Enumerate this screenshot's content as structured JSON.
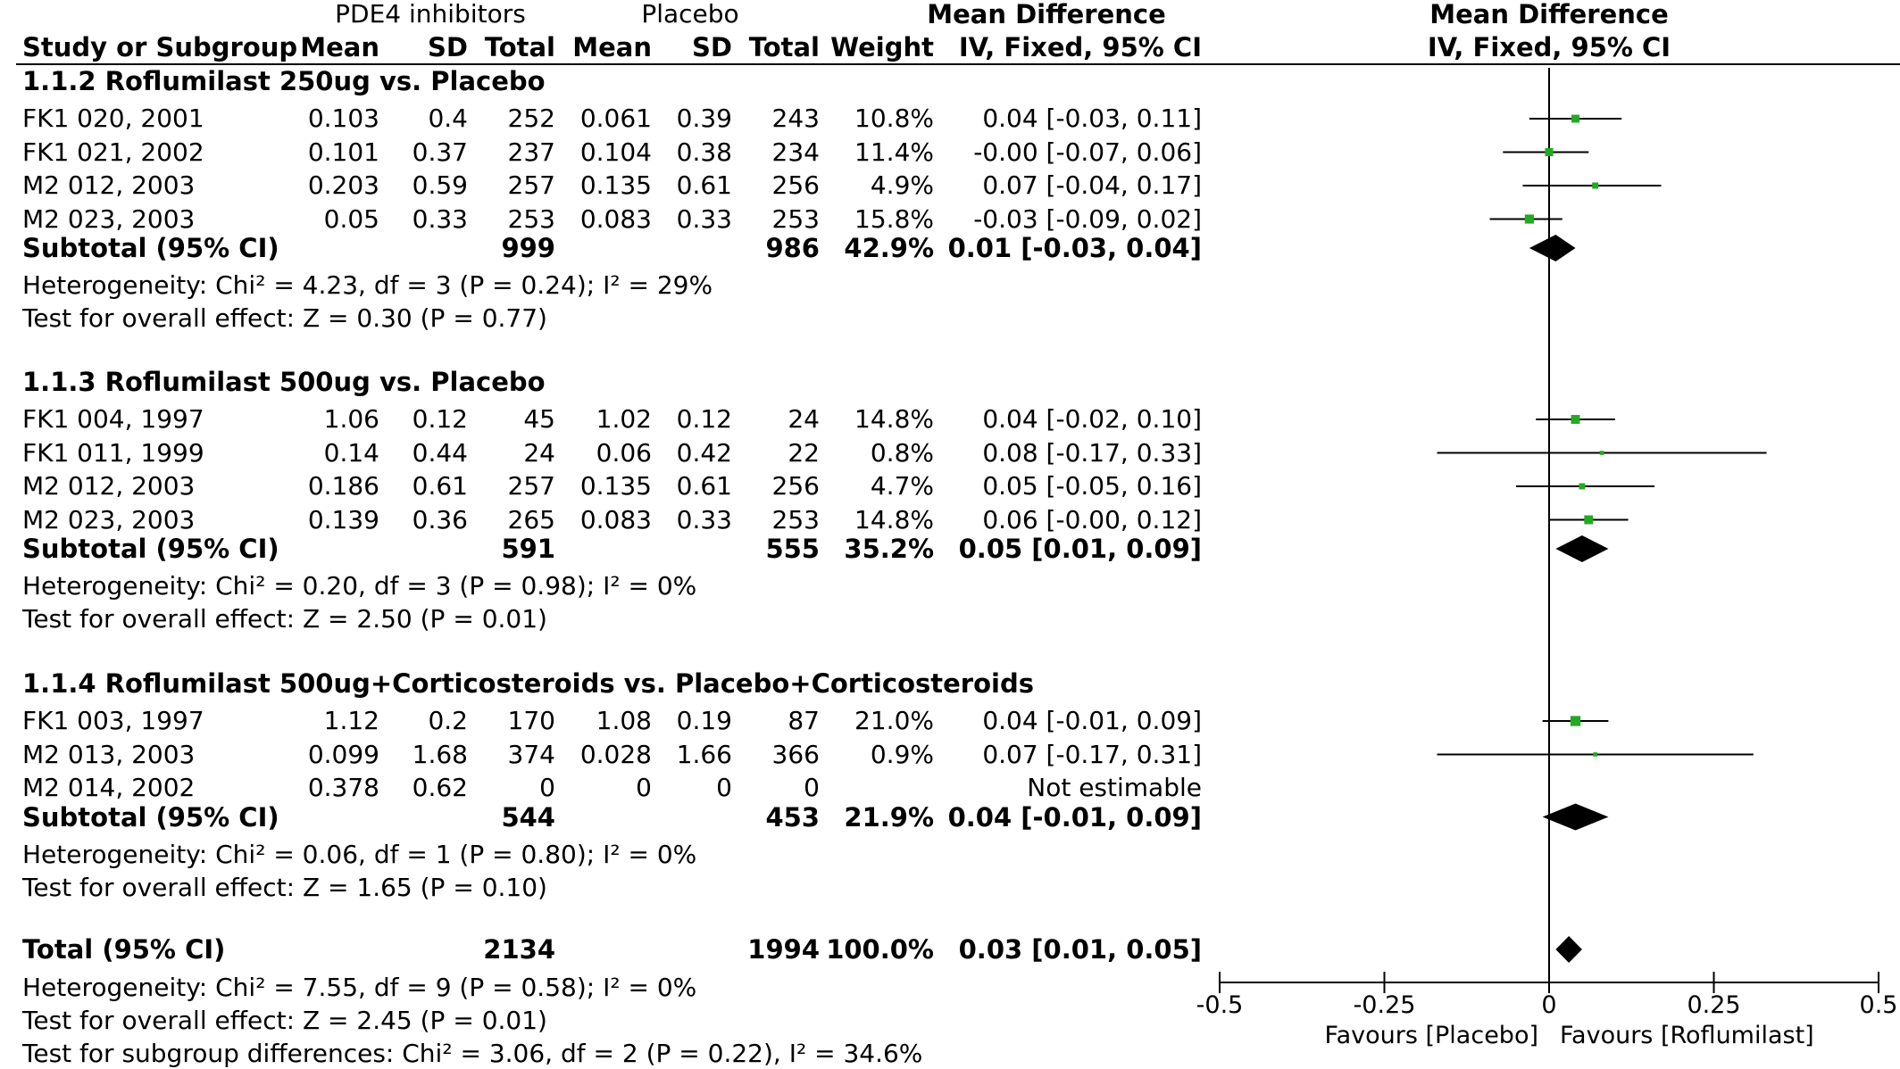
{
  "header": {
    "group1": "PDE4 inhibitors",
    "group2": "Placebo",
    "md_title": "Mean Difference",
    "md_method": "IV, Fixed, 95% CI",
    "plot_title": "Mean Difference",
    "plot_method": "IV, Fixed, 95% CI",
    "columns": [
      "Study or Subgroup",
      "Mean",
      "SD",
      "Total",
      "Mean",
      "SD",
      "Total",
      "Weight"
    ]
  },
  "subgroups": [
    {
      "title": "1.1.2 Roflumilast 250ug vs. Placebo",
      "studies": [
        {
          "name": "FK1 020, 2001",
          "e_mean": "0.103",
          "e_sd": "0.4",
          "e_total": "252",
          "c_mean": "0.061",
          "c_sd": "0.39",
          "c_total": "243",
          "weight": "10.8%",
          "ci_text": "0.04 [-0.03, 0.11]",
          "md": 0.04,
          "lo": -0.03,
          "hi": 0.11,
          "w": 10.8
        },
        {
          "name": "FK1 021, 2002",
          "e_mean": "0.101",
          "e_sd": "0.37",
          "e_total": "237",
          "c_mean": "0.104",
          "c_sd": "0.38",
          "c_total": "234",
          "weight": "11.4%",
          "ci_text": "-0.00 [-0.07, 0.06]",
          "md": -0.0,
          "lo": -0.07,
          "hi": 0.06,
          "w": 11.4
        },
        {
          "name": "M2 012, 2003",
          "e_mean": "0.203",
          "e_sd": "0.59",
          "e_total": "257",
          "c_mean": "0.135",
          "c_sd": "0.61",
          "c_total": "256",
          "weight": "4.9%",
          "ci_text": "0.07 [-0.04, 0.17]",
          "md": 0.07,
          "lo": -0.04,
          "hi": 0.17,
          "w": 4.9
        },
        {
          "name": "M2 023, 2003",
          "e_mean": "0.05",
          "e_sd": "0.33",
          "e_total": "253",
          "c_mean": "0.083",
          "c_sd": "0.33",
          "c_total": "253",
          "weight": "15.8%",
          "ci_text": "-0.03 [-0.09, 0.02]",
          "md": -0.03,
          "lo": -0.09,
          "hi": 0.02,
          "w": 15.8
        }
      ],
      "subtotal": {
        "label": "Subtotal (95% CI)",
        "e_total": "999",
        "c_total": "986",
        "weight": "42.9%",
        "ci_text": "0.01 [-0.03, 0.04]",
        "md": 0.01,
        "lo": -0.03,
        "hi": 0.04
      },
      "heterogeneity": "Heterogeneity: Chi² = 4.23, df = 3 (P = 0.24); I² = 29%",
      "overall": "Test for overall effect: Z = 0.30 (P = 0.77)"
    },
    {
      "title": "1.1.3 Roflumilast 500ug vs. Placebo",
      "studies": [
        {
          "name": "FK1 004, 1997",
          "e_mean": "1.06",
          "e_sd": "0.12",
          "e_total": "45",
          "c_mean": "1.02",
          "c_sd": "0.12",
          "c_total": "24",
          "weight": "14.8%",
          "ci_text": "0.04 [-0.02, 0.10]",
          "md": 0.04,
          "lo": -0.02,
          "hi": 0.1,
          "w": 14.8
        },
        {
          "name": "FK1 011, 1999",
          "e_mean": "0.14",
          "e_sd": "0.44",
          "e_total": "24",
          "c_mean": "0.06",
          "c_sd": "0.42",
          "c_total": "22",
          "weight": "0.8%",
          "ci_text": "0.08 [-0.17, 0.33]",
          "md": 0.08,
          "lo": -0.17,
          "hi": 0.33,
          "w": 0.8
        },
        {
          "name": "M2 012, 2003",
          "e_mean": "0.186",
          "e_sd": "0.61",
          "e_total": "257",
          "c_mean": "0.135",
          "c_sd": "0.61",
          "c_total": "256",
          "weight": "4.7%",
          "ci_text": "0.05 [-0.05, 0.16]",
          "md": 0.05,
          "lo": -0.05,
          "hi": 0.16,
          "w": 4.7
        },
        {
          "name": "M2 023, 2003",
          "e_mean": "0.139",
          "e_sd": "0.36",
          "e_total": "265",
          "c_mean": "0.083",
          "c_sd": "0.33",
          "c_total": "253",
          "weight": "14.8%",
          "ci_text": "0.06 [-0.00, 0.12]",
          "md": 0.06,
          "lo": -0.0,
          "hi": 0.12,
          "w": 14.8
        }
      ],
      "subtotal": {
        "label": "Subtotal (95% CI)",
        "e_total": "591",
        "c_total": "555",
        "weight": "35.2%",
        "ci_text": "0.05 [0.01, 0.09]",
        "md": 0.05,
        "lo": 0.01,
        "hi": 0.09
      },
      "heterogeneity": "Heterogeneity: Chi² = 0.20, df = 3 (P = 0.98); I² = 0%",
      "overall": "Test for overall effect: Z = 2.50 (P = 0.01)"
    },
    {
      "title": "1.1.4 Roflumilast 500ug+Corticosteroids vs. Placebo+Corticosteroids",
      "studies": [
        {
          "name": "FK1 003, 1997",
          "e_mean": "1.12",
          "e_sd": "0.2",
          "e_total": "170",
          "c_mean": "1.08",
          "c_sd": "0.19",
          "c_total": "87",
          "weight": "21.0%",
          "ci_text": "0.04 [-0.01, 0.09]",
          "md": 0.04,
          "lo": -0.01,
          "hi": 0.09,
          "w": 21.0
        },
        {
          "name": "M2 013, 2003",
          "e_mean": "0.099",
          "e_sd": "1.68",
          "e_total": "374",
          "c_mean": "0.028",
          "c_sd": "1.66",
          "c_total": "366",
          "weight": "0.9%",
          "ci_text": "0.07 [-0.17, 0.31]",
          "md": 0.07,
          "lo": -0.17,
          "hi": 0.31,
          "w": 0.9
        },
        {
          "name": "M2 014, 2002",
          "e_mean": "0.378",
          "e_sd": "0.62",
          "e_total": "0",
          "c_mean": "0",
          "c_sd": "0",
          "c_total": "0",
          "weight": "",
          "ci_text": "Not estimable",
          "md": null,
          "lo": null,
          "hi": null,
          "w": 0
        }
      ],
      "subtotal": {
        "label": "Subtotal (95% CI)",
        "e_total": "544",
        "c_total": "453",
        "weight": "21.9%",
        "ci_text": "0.04 [-0.01, 0.09]",
        "md": 0.04,
        "lo": -0.01,
        "hi": 0.09
      },
      "heterogeneity": "Heterogeneity: Chi² = 0.06, df = 1 (P = 0.80); I² = 0%",
      "overall": "Test for overall effect: Z = 1.65 (P = 0.10)"
    }
  ],
  "total": {
    "label": "Total (95% CI)",
    "e_total": "2134",
    "c_total": "1994",
    "weight": "100.0%",
    "ci_text": "0.03 [0.01, 0.05]",
    "md": 0.03,
    "lo": 0.01,
    "hi": 0.05,
    "heterogeneity": "Heterogeneity: Chi² = 7.55, df = 9 (P = 0.58); I² = 0%",
    "overall": "Test for overall effect: Z = 2.45 (P = 0.01)",
    "subgroup_diff": "Test for subgroup differences: Chi² = 3.06, df = 2 (P = 0.22), I² = 34.6%"
  },
  "chart_data": {
    "type": "forest",
    "xlim": [
      -0.5,
      0.5
    ],
    "ticks": [
      -0.5,
      -0.25,
      0,
      0.25,
      0.5
    ],
    "tick_labels": [
      "-0.5",
      "-0.25",
      "0",
      "0.25",
      "0.5"
    ],
    "favours_left": "Favours [Placebo]",
    "favours_right": "Favours [Roflumilast]",
    "square_color": "#22aa22"
  }
}
